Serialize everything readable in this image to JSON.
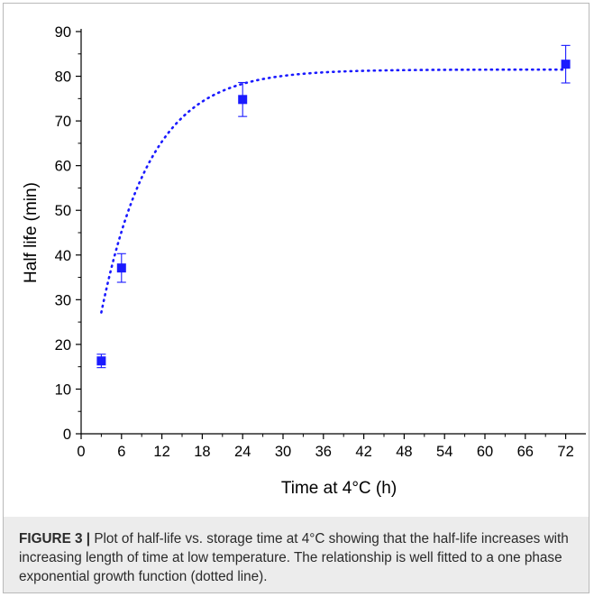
{
  "chart_data": {
    "type": "scatter",
    "xlabel": "Time at 4°C (h)",
    "ylabel": "Half life (min)",
    "xlim": [
      0,
      75
    ],
    "ylim": [
      0,
      90
    ],
    "x_ticks": [
      0,
      6,
      12,
      18,
      24,
      30,
      36,
      42,
      48,
      54,
      60,
      66,
      72
    ],
    "y_ticks": [
      0,
      10,
      20,
      30,
      40,
      50,
      60,
      70,
      80,
      90
    ],
    "grid": false,
    "series": [
      {
        "marker": "square",
        "color": "#1a1aff",
        "x": [
          3,
          6,
          24,
          72
        ],
        "y": [
          16.3,
          37.1,
          74.8,
          82.7
        ],
        "error": [
          1.5,
          3.2,
          3.8,
          4.2
        ]
      }
    ],
    "fit": {
      "style": "dotted",
      "color": "#1a1aff",
      "function": "one phase exponential growth",
      "y0": 0,
      "plateau": 81.5,
      "k": 0.135
    }
  },
  "caption": {
    "label": "FIGURE 3 |",
    "text": " Plot of half-life vs. storage time at 4°C showing that the half-life increases with increasing length of time at low temperature. The relationship is well fitted to a one phase exponential growth function (dotted line)."
  }
}
